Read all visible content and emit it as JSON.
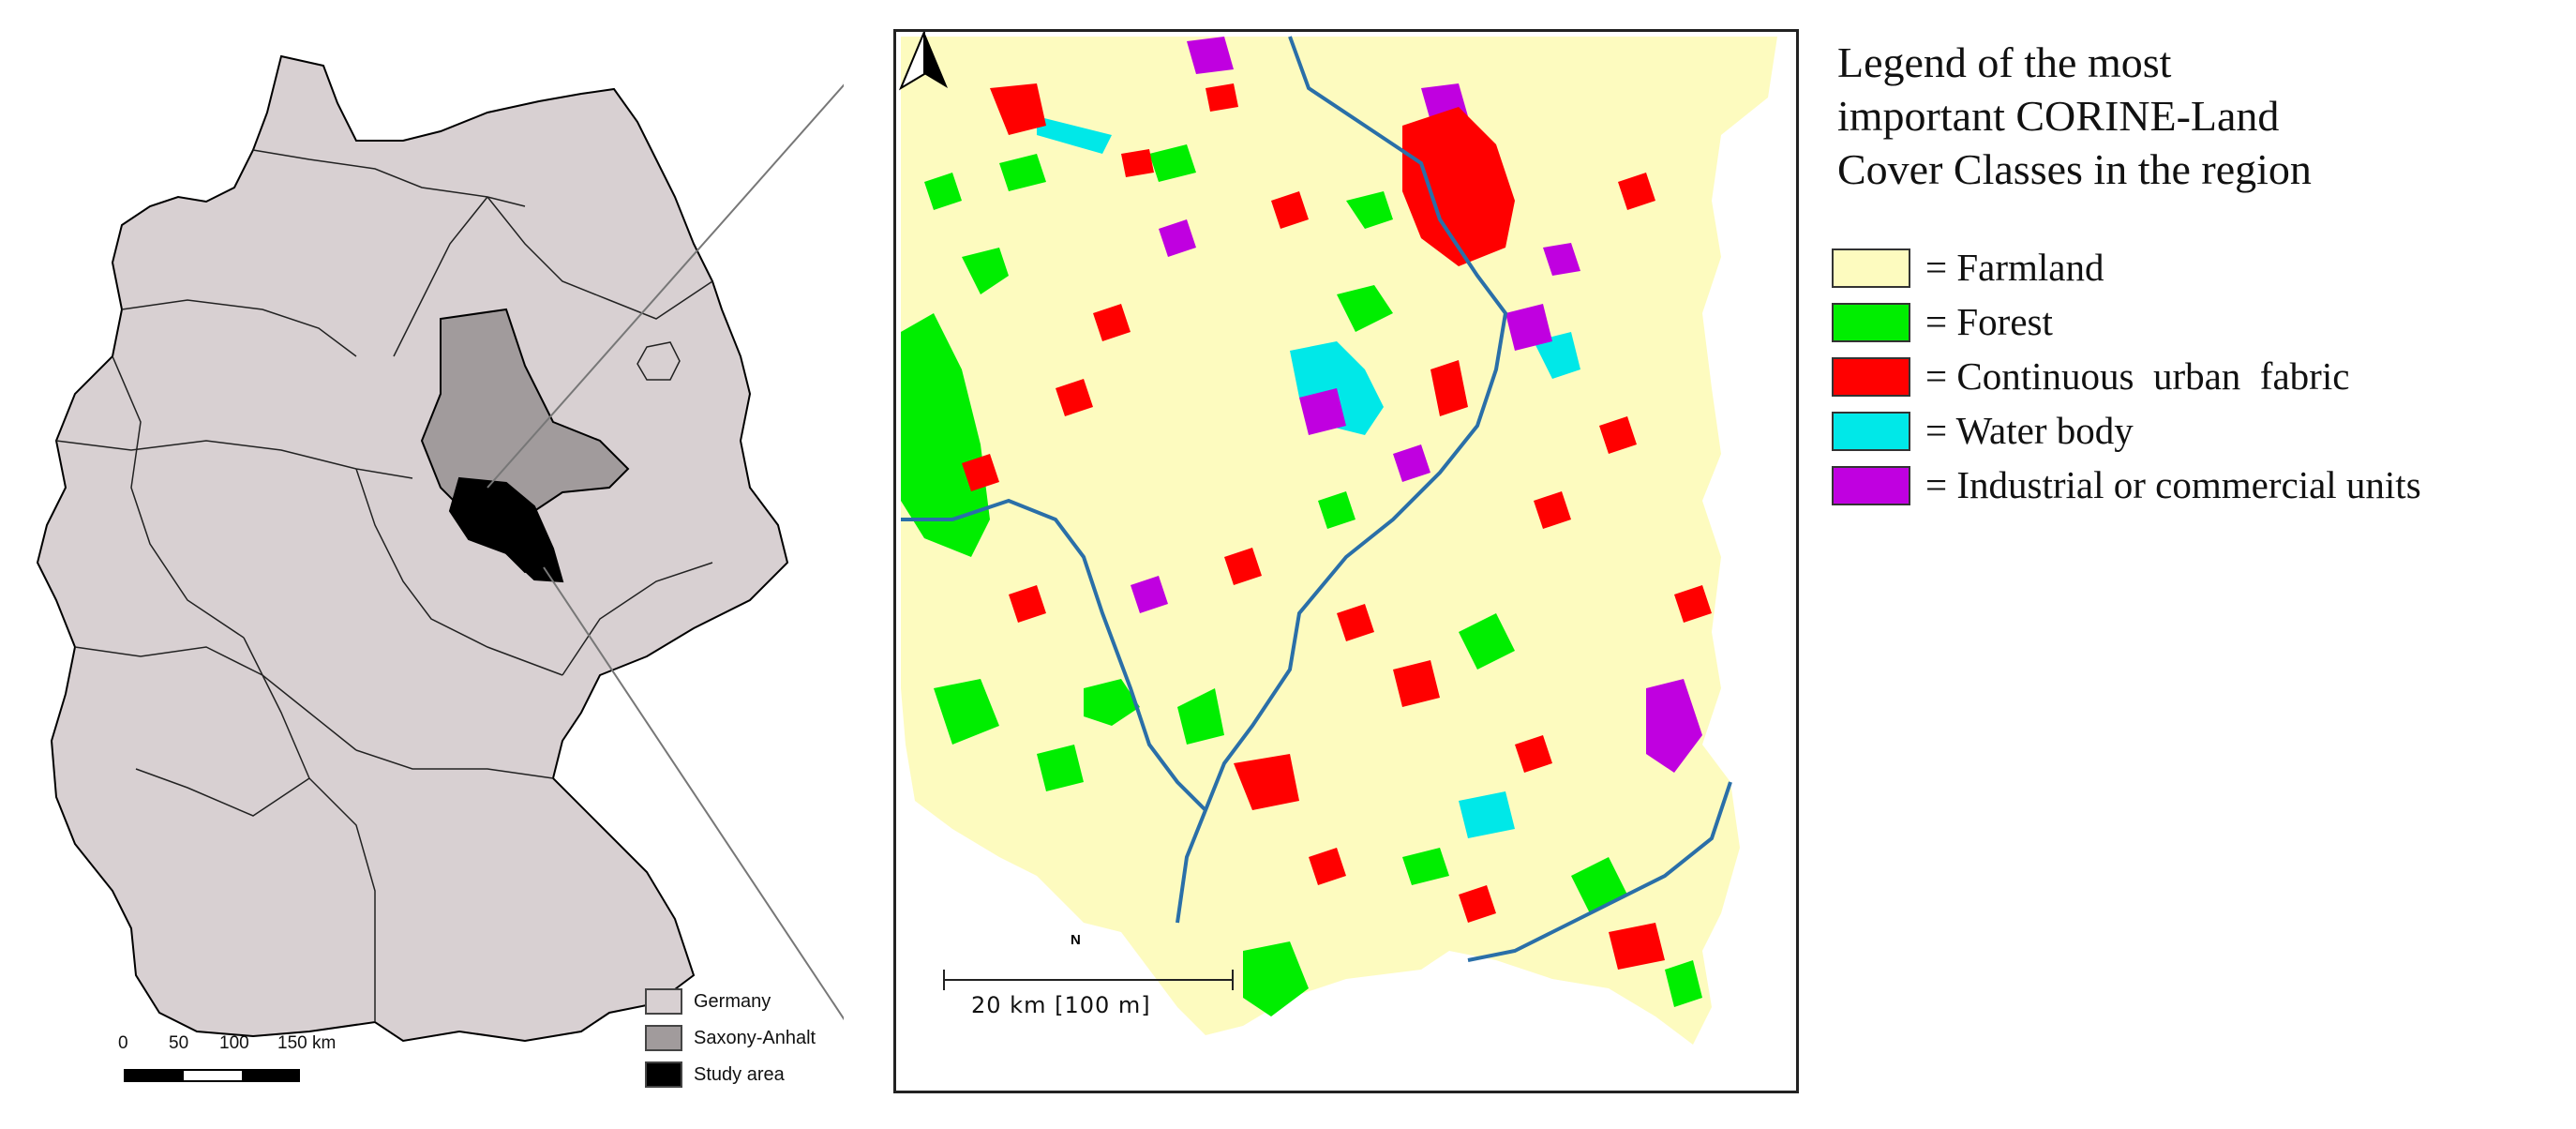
{
  "germany_map": {
    "legend": [
      {
        "label": "Germany",
        "color": "#d8d0d2"
      },
      {
        "label": "Saxony-Anhalt",
        "color": "#a19b9c"
      },
      {
        "label": "Study area",
        "color": "#000000"
      }
    ],
    "scalebar": {
      "ticks": [
        "0",
        "50",
        "100",
        "150 km"
      ]
    }
  },
  "study_map": {
    "scalebar_label": "20 km [100 m]",
    "north_label": "N"
  },
  "corine_legend": {
    "title_lines": [
      "Legend of the most",
      "important CORINE-Land",
      "Cover Classes in the region"
    ],
    "classes": [
      {
        "label": "= Farmland",
        "color": "#fdfbbf"
      },
      {
        "label": "= Forest",
        "color": "#00ee00"
      },
      {
        "label": "= Continuous  urban  fabric",
        "color": "#ff0000"
      },
      {
        "label": "= Water body",
        "color": "#00e8e8"
      },
      {
        "label": "= Industrial or commercial units",
        "color": "#c000e0"
      }
    ]
  }
}
